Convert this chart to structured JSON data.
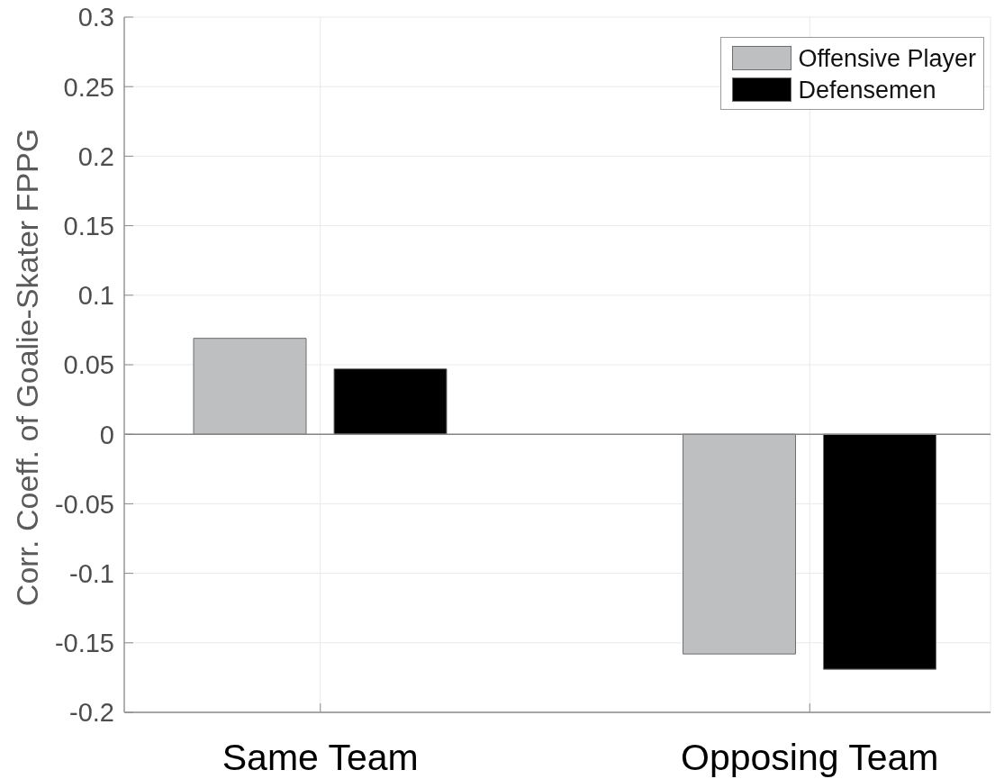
{
  "chart_data": {
    "type": "bar",
    "ylabel": "Corr. Coeff. of Goalie-Skater FPPG",
    "categories": [
      "Same Team",
      "Opposing Team"
    ],
    "series": [
      {
        "name": "Offensive Player",
        "color": "#bebfc1",
        "values": [
          0.069,
          -0.158
        ]
      },
      {
        "name": "Defensemen",
        "color": "#000000",
        "values": [
          0.047,
          -0.169
        ]
      }
    ],
    "ylim": [
      -0.2,
      0.3
    ],
    "yticks": [
      -0.2,
      -0.15,
      -0.1,
      -0.05,
      0,
      0.05,
      0.1,
      0.15,
      0.2,
      0.25,
      0.3
    ],
    "grid": true,
    "legend": "top right",
    "ref_lines": [
      {
        "axis": "y",
        "value": 0,
        "color": "#858585"
      }
    ]
  }
}
